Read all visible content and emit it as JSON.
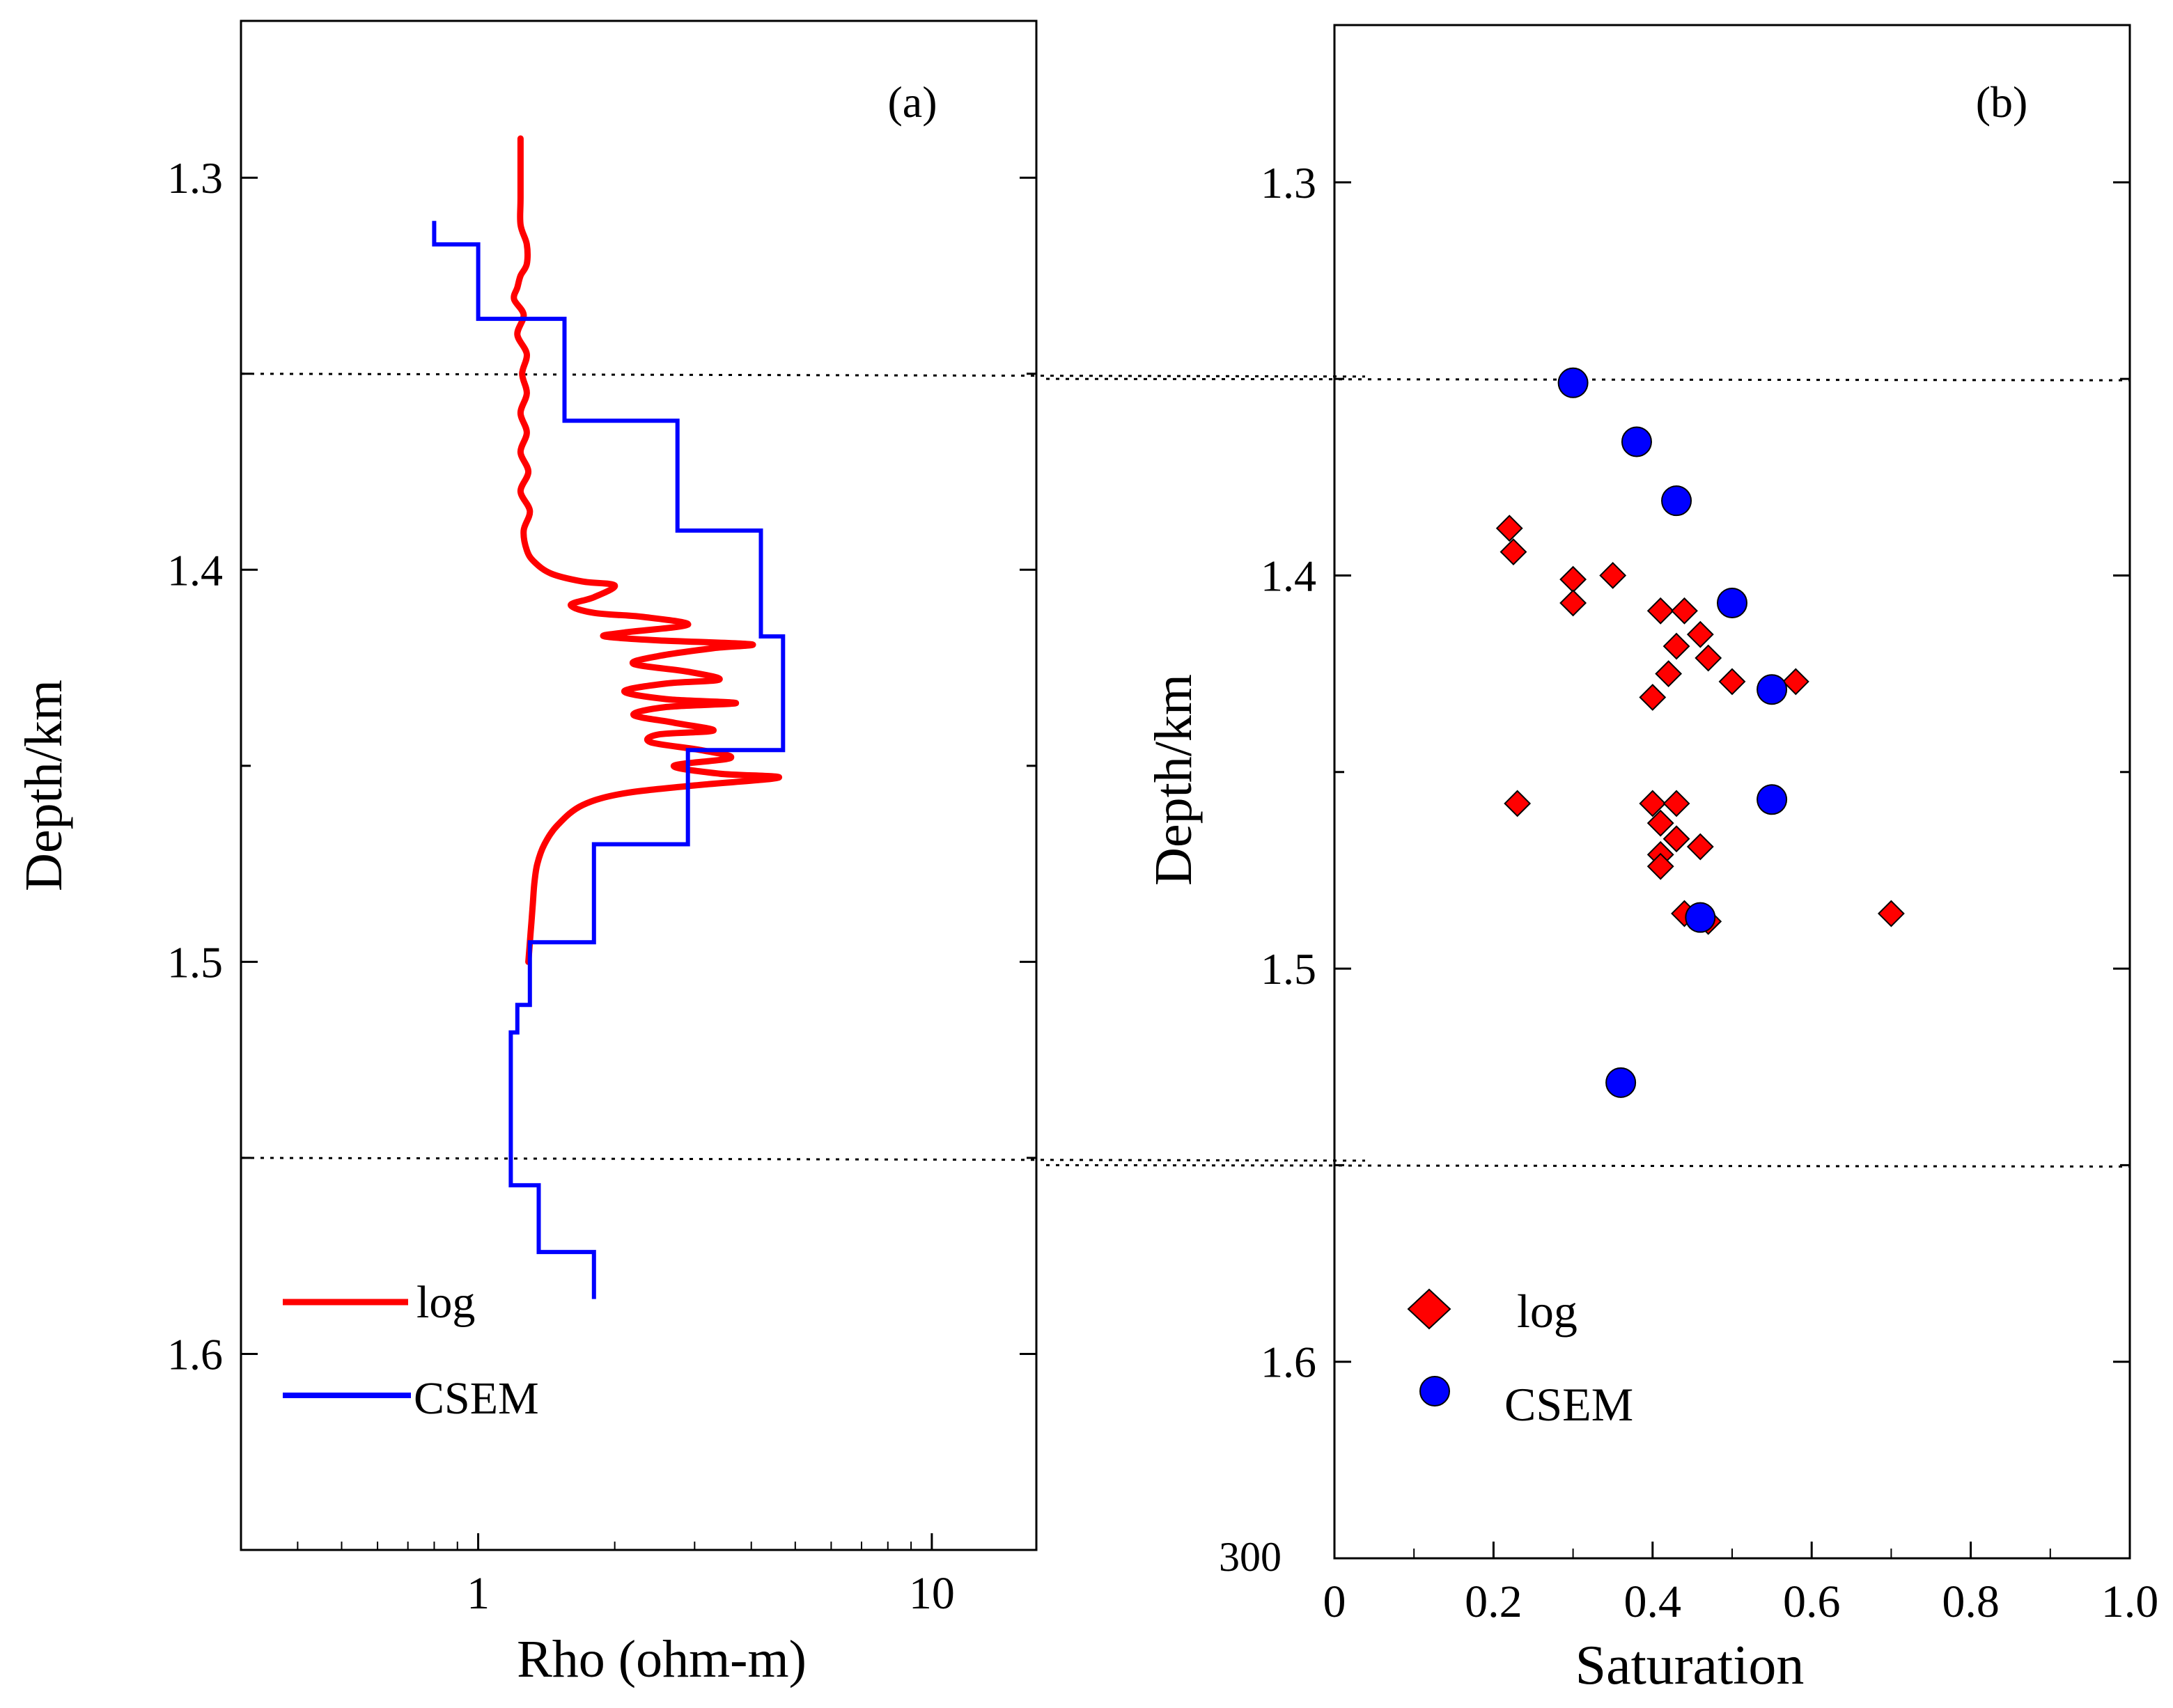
{
  "chart_data": [
    {
      "type": "line",
      "panel_label": "(a)",
      "xlabel": "Rho (ohm-m)",
      "ylabel": "Depth/km",
      "xscale": "log",
      "xlim": [
        0.3,
        17
      ],
      "ylim": [
        1.65,
        1.26
      ],
      "xticks": [
        {
          "value": 1,
          "label": "1"
        },
        {
          "value": 10,
          "label": "10"
        }
      ],
      "yticks": [
        {
          "value": 1.3,
          "label": "1.3"
        },
        {
          "value": 1.4,
          "label": "1.4"
        },
        {
          "value": 1.5,
          "label": "1.5"
        },
        {
          "value": 1.6,
          "label": "1.6"
        }
      ],
      "yminor": [
        1.35,
        1.45,
        1.55
      ],
      "reference_lines": [
        1.35,
        1.55
      ],
      "legend_position": "bottom-left",
      "series": [
        {
          "name": "log",
          "color": "#ff0000",
          "style": "smooth",
          "points": [
            [
              1.24,
              1.29
            ],
            [
              1.24,
              1.305
            ],
            [
              1.24,
              1.312
            ],
            [
              1.28,
              1.317
            ],
            [
              1.28,
              1.322
            ],
            [
              1.24,
              1.325
            ],
            [
              1.22,
              1.328
            ],
            [
              1.2,
              1.331
            ],
            [
              1.26,
              1.335
            ],
            [
              1.22,
              1.34
            ],
            [
              1.28,
              1.345
            ],
            [
              1.25,
              1.35
            ],
            [
              1.28,
              1.355
            ],
            [
              1.24,
              1.36
            ],
            [
              1.28,
              1.365
            ],
            [
              1.24,
              1.37
            ],
            [
              1.29,
              1.375
            ],
            [
              1.24,
              1.38
            ],
            [
              1.3,
              1.385
            ],
            [
              1.26,
              1.39
            ],
            [
              1.28,
              1.395
            ],
            [
              1.33,
              1.398
            ],
            [
              1.45,
              1.401
            ],
            [
              1.7,
              1.403
            ],
            [
              2.0,
              1.404
            ],
            [
              1.8,
              1.407
            ],
            [
              1.6,
              1.409
            ],
            [
              1.8,
              1.411
            ],
            [
              2.3,
              1.412
            ],
            [
              2.9,
              1.414
            ],
            [
              2.1,
              1.416
            ],
            [
              1.9,
              1.417
            ],
            [
              2.5,
              1.418
            ],
            [
              4.0,
              1.419
            ],
            [
              3.3,
              1.42
            ],
            [
              2.5,
              1.422
            ],
            [
              2.2,
              1.424
            ],
            [
              2.9,
              1.426
            ],
            [
              3.4,
              1.428
            ],
            [
              2.6,
              1.429
            ],
            [
              2.1,
              1.431
            ],
            [
              2.6,
              1.433
            ],
            [
              3.7,
              1.434
            ],
            [
              2.6,
              1.435
            ],
            [
              2.2,
              1.437
            ],
            [
              2.7,
              1.439
            ],
            [
              3.3,
              1.441
            ],
            [
              2.5,
              1.442
            ],
            [
              2.4,
              1.444
            ],
            [
              3.1,
              1.446
            ],
            [
              3.6,
              1.448
            ],
            [
              2.7,
              1.45
            ],
            [
              3.4,
              1.452
            ],
            [
              4.6,
              1.453
            ],
            [
              3.0,
              1.455
            ],
            [
              2.1,
              1.457
            ],
            [
              1.7,
              1.46
            ],
            [
              1.5,
              1.465
            ],
            [
              1.4,
              1.47
            ],
            [
              1.35,
              1.475
            ],
            [
              1.33,
              1.48
            ],
            [
              1.32,
              1.485
            ],
            [
              1.31,
              1.49
            ],
            [
              1.3,
              1.495
            ],
            [
              1.29,
              1.5
            ]
          ]
        },
        {
          "name": "CSEM",
          "color": "#0000ff",
          "style": "step",
          "points": [
            [
              0.8,
              1.311
            ],
            [
              0.8,
              1.317
            ],
            [
              1.0,
              1.317
            ],
            [
              1.0,
              1.336
            ],
            [
              1.55,
              1.336
            ],
            [
              1.55,
              1.362
            ],
            [
              2.75,
              1.362
            ],
            [
              2.75,
              1.39
            ],
            [
              4.2,
              1.39
            ],
            [
              4.2,
              1.417
            ],
            [
              4.7,
              1.417
            ],
            [
              4.7,
              1.446
            ],
            [
              2.9,
              1.446
            ],
            [
              2.9,
              1.47
            ],
            [
              1.8,
              1.47
            ],
            [
              1.8,
              1.495
            ],
            [
              1.3,
              1.495
            ],
            [
              1.3,
              1.511
            ],
            [
              1.22,
              1.511
            ],
            [
              1.22,
              1.518
            ],
            [
              1.18,
              1.518
            ],
            [
              1.18,
              1.557
            ],
            [
              1.36,
              1.557
            ],
            [
              1.36,
              1.574
            ],
            [
              1.8,
              1.574
            ],
            [
              1.8,
              1.586
            ]
          ]
        }
      ]
    },
    {
      "type": "scatter",
      "panel_label": "(b)",
      "xlabel": "Saturation",
      "ylabel": "Depth/km",
      "xlim": [
        0,
        1.0
      ],
      "ylim": [
        1.65,
        1.26
      ],
      "xticks": [
        {
          "value": 0,
          "label": "0"
        },
        {
          "value": 0.2,
          "label": "0.2"
        },
        {
          "value": 0.4,
          "label": "0.4"
        },
        {
          "value": 0.6,
          "label": "0.6"
        },
        {
          "value": 0.8,
          "label": "0.8"
        },
        {
          "value": 1.0,
          "label": "1.0"
        }
      ],
      "yticks": [
        {
          "value": 1.3,
          "label": "1.3"
        },
        {
          "value": 1.4,
          "label": "1.4"
        },
        {
          "value": 1.5,
          "label": "1.5"
        },
        {
          "value": 1.6,
          "label": "1.6"
        }
      ],
      "yminor": [
        1.35,
        1.45,
        1.55
      ],
      "corner_label": "300",
      "reference_lines": [
        1.35,
        1.55
      ],
      "legend_position": "bottom-left",
      "series": [
        {
          "name": "log",
          "color": "#ff0000",
          "marker": "diamond",
          "points": [
            [
              0.22,
              1.388
            ],
            [
              0.225,
              1.394
            ],
            [
              0.3,
              1.401
            ],
            [
              0.3,
              1.407
            ],
            [
              0.35,
              1.4
            ],
            [
              0.41,
              1.409
            ],
            [
              0.44,
              1.409
            ],
            [
              0.46,
              1.415
            ],
            [
              0.43,
              1.418
            ],
            [
              0.47,
              1.421
            ],
            [
              0.42,
              1.425
            ],
            [
              0.5,
              1.427
            ],
            [
              0.4,
              1.431
            ],
            [
              0.58,
              1.427
            ],
            [
              0.23,
              1.458
            ],
            [
              0.4,
              1.458
            ],
            [
              0.43,
              1.458
            ],
            [
              0.41,
              1.463
            ],
            [
              0.43,
              1.467
            ],
            [
              0.46,
              1.469
            ],
            [
              0.41,
              1.471
            ],
            [
              0.41,
              1.474
            ],
            [
              0.44,
              1.486
            ],
            [
              0.47,
              1.488
            ],
            [
              0.7,
              1.486
            ]
          ]
        },
        {
          "name": "CSEM",
          "color": "#0000ff",
          "marker": "circle",
          "points": [
            [
              0.3,
              1.351
            ],
            [
              0.38,
              1.366
            ],
            [
              0.43,
              1.381
            ],
            [
              0.5,
              1.407
            ],
            [
              0.55,
              1.429
            ],
            [
              0.55,
              1.457
            ],
            [
              0.46,
              1.487
            ],
            [
              0.36,
              1.529
            ]
          ]
        }
      ]
    }
  ]
}
